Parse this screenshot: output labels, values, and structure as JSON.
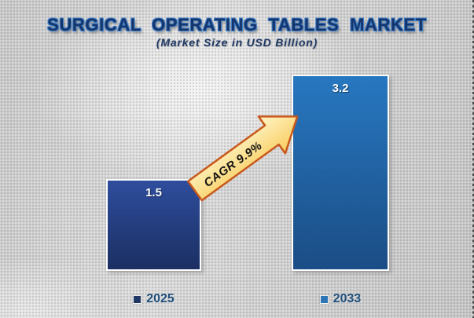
{
  "title": "SURGICAL OPERATING TABLES MARKET",
  "subtitle": "(Market Size in USD Billion)",
  "chart_data": {
    "type": "bar",
    "title": "SURGICAL OPERATING TABLES MARKET",
    "subtitle": "(Market Size in USD Billion)",
    "categories": [
      "2025",
      "2033"
    ],
    "values": [
      1.5,
      3.2
    ],
    "unit": "USD Billion",
    "annotations": [
      "CAGR 9.9%"
    ],
    "legend_position": "bottom",
    "axes_visible": false,
    "grid": false
  },
  "bars": [
    {
      "label": "2025",
      "value": 1.5,
      "display_value": "1.5",
      "gradient_top": "#2e4d9d",
      "gradient_bottom": "#1b2f62",
      "marker_color": "#1f3864"
    },
    {
      "label": "2033",
      "value": 3.2,
      "display_value": "3.2",
      "gradient_top": "#2777c0",
      "gradient_bottom": "#1b4d85",
      "marker_color": "#2e75b6"
    }
  ],
  "annotation": {
    "label": "CAGR 9.9%",
    "fill_light": "#fff5c9",
    "fill_dark": "#f8cd5e",
    "stroke": "#c8581c"
  },
  "colors": {
    "title_text": "#15356b",
    "title_glow": "#3d7ec9",
    "subtitle_text": "#1f3864",
    "legend_text": "#1f4e79",
    "bar_value_text": "#ffffff",
    "background": "#d0d0d0"
  }
}
